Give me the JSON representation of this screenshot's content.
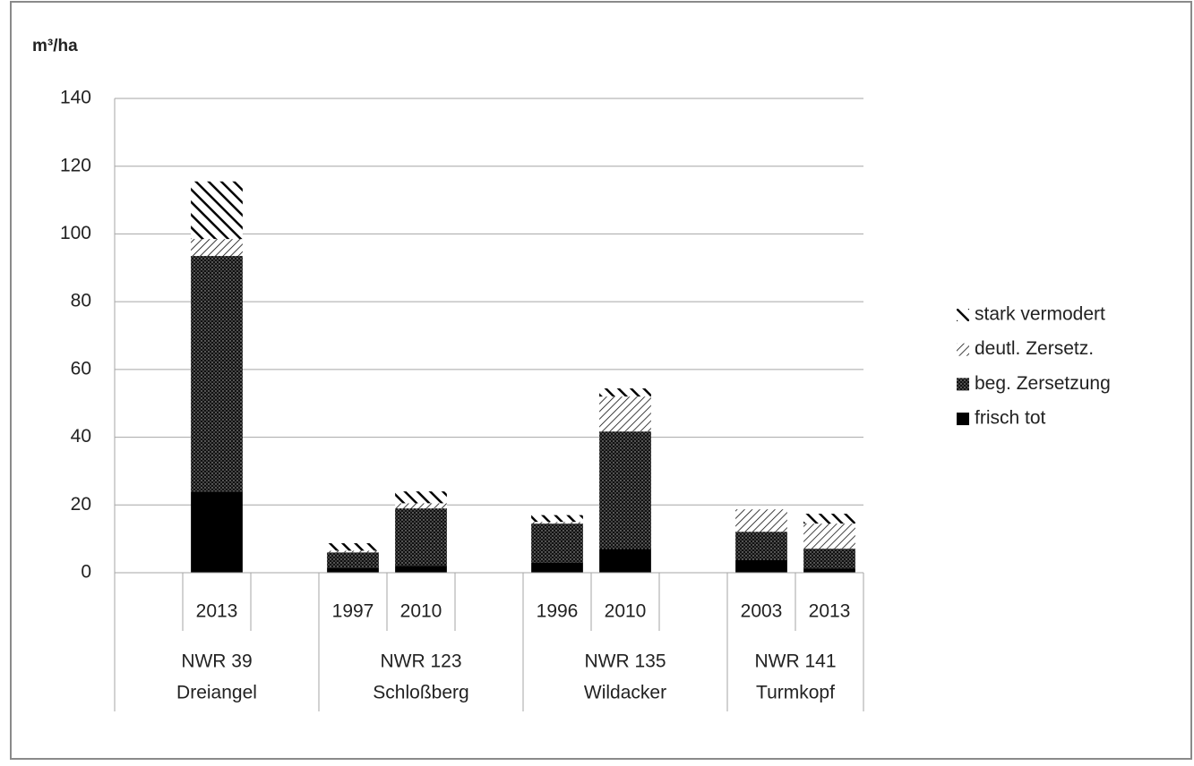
{
  "chart_data": {
    "type": "stacked-bar",
    "y_axis_label": "m³/ha",
    "groups": [
      {
        "label": [
          "NWR 39",
          "Dreiangel"
        ],
        "categories": [
          null,
          "2013",
          null
        ]
      },
      {
        "label": [
          "NWR 123",
          "Schloßberg"
        ],
        "categories": [
          "1997",
          "2010",
          null
        ]
      },
      {
        "label": [
          "NWR 135",
          "Wildacker"
        ],
        "categories": [
          "1996",
          "2010",
          null
        ]
      },
      {
        "label": [
          "NWR 141",
          "Turmkopf"
        ],
        "categories": [
          "2003",
          "2013"
        ]
      }
    ],
    "series": [
      {
        "name": "frisch tot",
        "color": "#000000",
        "pattern": "solid",
        "values": [
          null,
          24,
          null,
          1.5,
          2,
          null,
          3,
          7,
          null,
          3.7,
          1.3
        ]
      },
      {
        "name": "beg. Zersetzung",
        "color": "#000000",
        "pattern": "dots",
        "values": [
          null,
          69.5,
          null,
          4.5,
          17,
          null,
          11.5,
          34.7,
          null,
          8.4,
          5.8
        ]
      },
      {
        "name": "deutl. Zersetz.",
        "color": "#000000",
        "pattern": "light-diagonal",
        "values": [
          null,
          5,
          null,
          0.5,
          1.5,
          null,
          0.5,
          10.3,
          null,
          6.6,
          7.4
        ]
      },
      {
        "name": "stark vermodert",
        "color": "#000000",
        "pattern": "heavy-diagonal",
        "values": [
          null,
          17,
          null,
          2.2,
          3.5,
          null,
          2,
          2.4,
          null,
          0,
          2.9
        ]
      }
    ],
    "ylim": [
      0,
      140
    ],
    "yticks": [
      0,
      20,
      40,
      60,
      80,
      100,
      120,
      140
    ],
    "grid": true,
    "legend": "right"
  }
}
